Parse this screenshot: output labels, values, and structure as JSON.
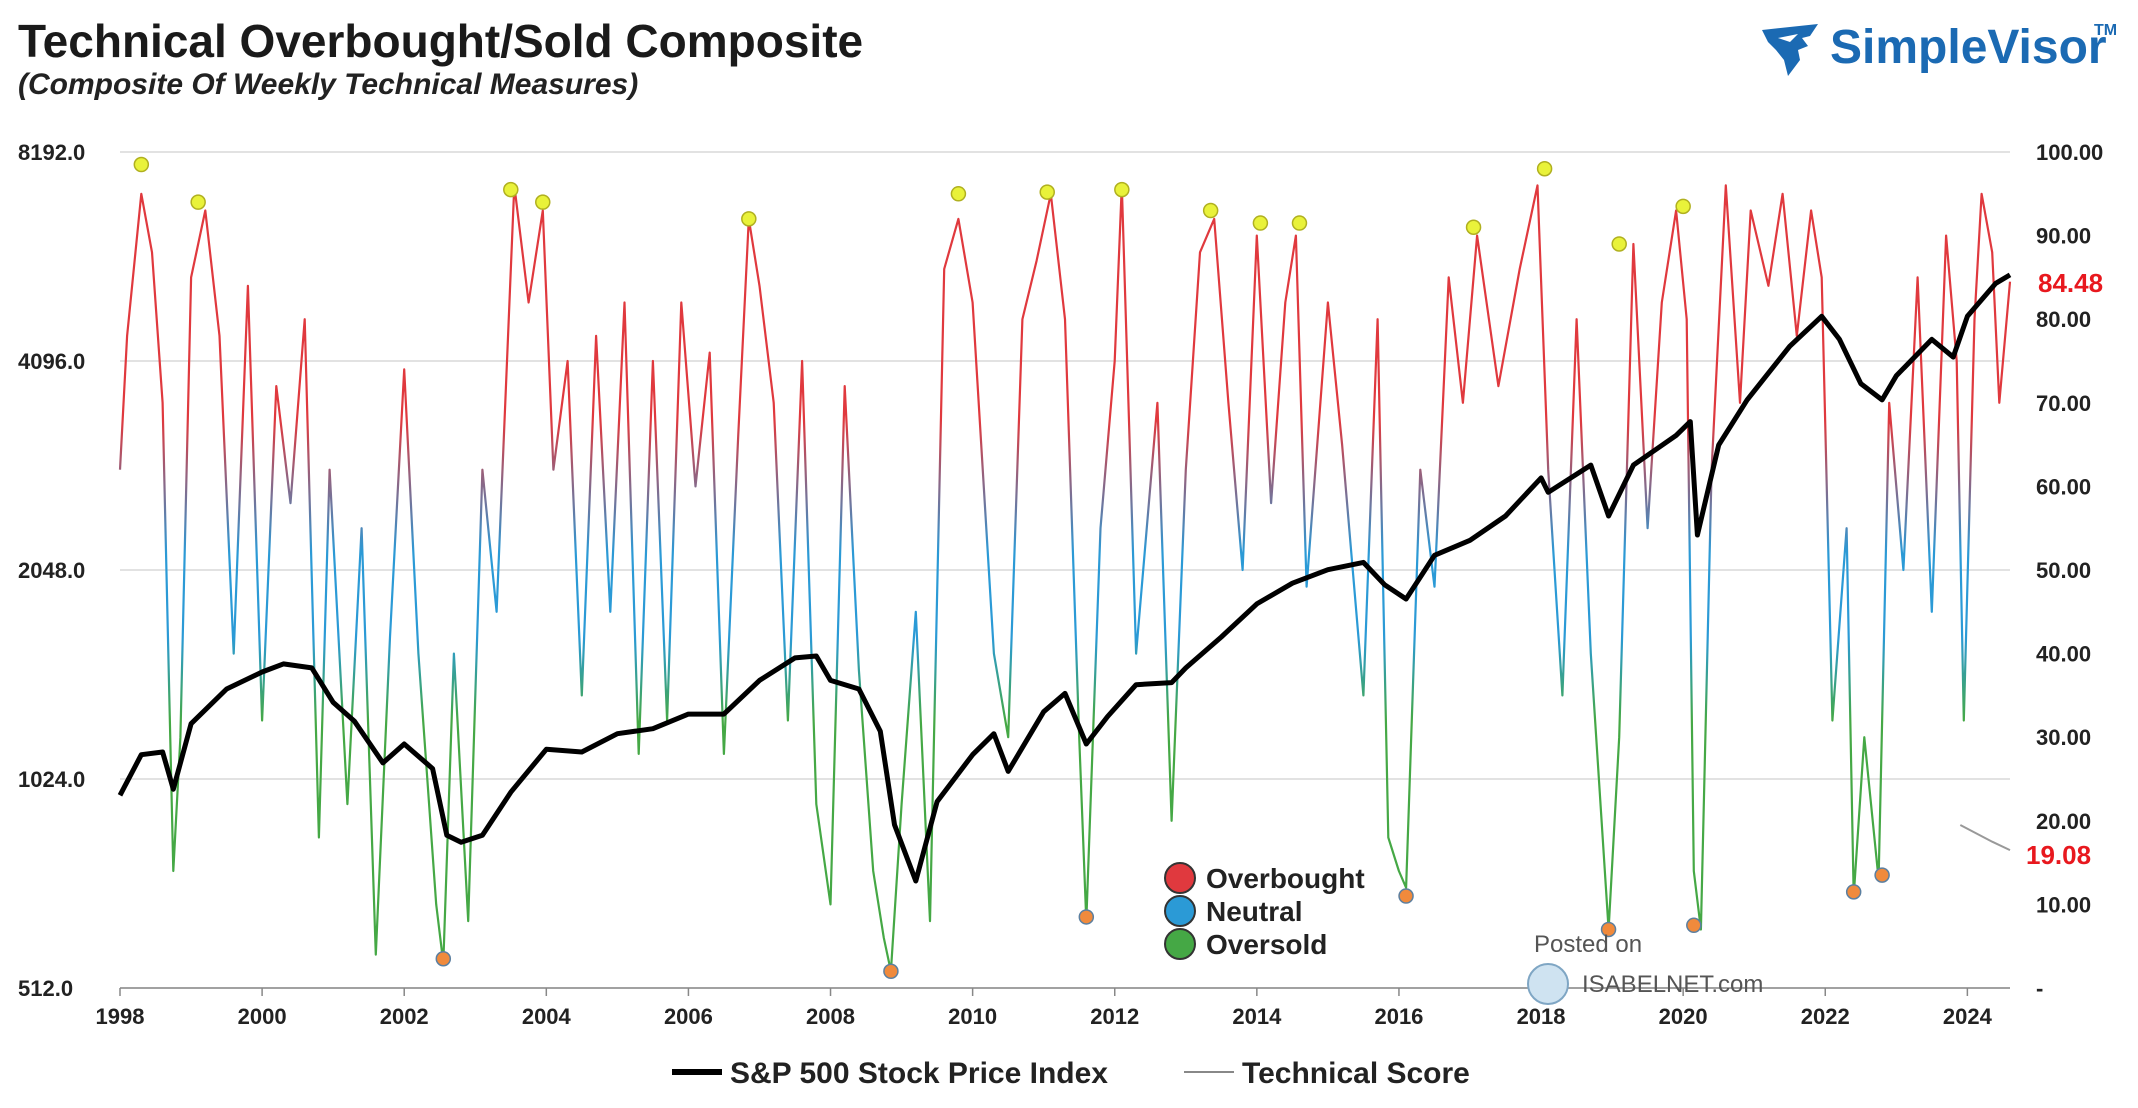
{
  "header": {
    "title": "Technical Overbought/Sold Composite",
    "subtitle": "(Composite Of Weekly Technical Measures)"
  },
  "logo": {
    "brand": "SimpleVisor",
    "tm": "TM",
    "icon": "eagle-icon",
    "color": "#1b6ab3"
  },
  "watermark": {
    "line1": "Posted on",
    "line2": "ISABELNET.com",
    "icon": "globe-icon"
  },
  "colors": {
    "overbought": "#e0393e",
    "neutral": "#2b9ad6",
    "oversold": "#45a845",
    "sp500": "#000000",
    "callout": "#e8181e",
    "peak_marker": "#e9f23a",
    "trough_marker": "#f08a3c"
  },
  "chart_data": {
    "type": "line",
    "x_range": [
      1998,
      2024.6
    ],
    "x_ticks": [
      "1998",
      "2000",
      "2002",
      "2004",
      "2006",
      "2008",
      "2010",
      "2012",
      "2014",
      "2016",
      "2018",
      "2020",
      "2022",
      "2024"
    ],
    "y_left": {
      "scale": "log2",
      "range": [
        512,
        8192
      ],
      "ticks": [
        "512.0",
        "1024.0",
        "2048.0",
        "4096.0",
        "8192.0"
      ]
    },
    "y_right": {
      "range": [
        0,
        100
      ],
      "ticks": [
        "-",
        "10.00",
        "20.00",
        "30.00",
        "40.00",
        "50.00",
        "60.00",
        "70.00",
        "80.00",
        "90.00",
        "100.00"
      ]
    },
    "grid": "horizontal",
    "legend": {
      "position": "bottom",
      "items": [
        "S&P 500 Stock Price Index",
        "Technical Score"
      ]
    },
    "zone_legend": {
      "position": "center-bottom",
      "items": [
        {
          "label": "Overbought",
          "color": "#e0393e"
        },
        {
          "label": "Neutral",
          "color": "#2b9ad6"
        },
        {
          "label": "Oversold",
          "color": "#45a845"
        }
      ]
    },
    "callouts": {
      "technical_score": "84.48",
      "last_value": "19.08"
    },
    "sp500": {
      "name": "S&P 500 Stock Price Index",
      "axis": "left",
      "points": [
        [
          1998.0,
          970
        ],
        [
          1998.3,
          1110
        ],
        [
          1998.6,
          1120
        ],
        [
          1998.75,
          990
        ],
        [
          1999.0,
          1230
        ],
        [
          1999.5,
          1380
        ],
        [
          2000.0,
          1460
        ],
        [
          2000.3,
          1500
        ],
        [
          2000.7,
          1480
        ],
        [
          2001.0,
          1320
        ],
        [
          2001.3,
          1240
        ],
        [
          2001.7,
          1080
        ],
        [
          2002.0,
          1150
        ],
        [
          2002.4,
          1060
        ],
        [
          2002.6,
          850
        ],
        [
          2002.8,
          830
        ],
        [
          2003.1,
          850
        ],
        [
          2003.5,
          980
        ],
        [
          2004.0,
          1130
        ],
        [
          2004.5,
          1120
        ],
        [
          2005.0,
          1190
        ],
        [
          2005.5,
          1210
        ],
        [
          2006.0,
          1270
        ],
        [
          2006.5,
          1270
        ],
        [
          2007.0,
          1420
        ],
        [
          2007.5,
          1530
        ],
        [
          2007.8,
          1540
        ],
        [
          2008.0,
          1420
        ],
        [
          2008.4,
          1380
        ],
        [
          2008.7,
          1200
        ],
        [
          2008.9,
          880
        ],
        [
          2009.2,
          730
        ],
        [
          2009.5,
          950
        ],
        [
          2010.0,
          1110
        ],
        [
          2010.3,
          1190
        ],
        [
          2010.5,
          1050
        ],
        [
          2011.0,
          1280
        ],
        [
          2011.3,
          1360
        ],
        [
          2011.6,
          1150
        ],
        [
          2011.9,
          1260
        ],
        [
          2012.3,
          1400
        ],
        [
          2012.8,
          1410
        ],
        [
          2013.0,
          1480
        ],
        [
          2013.5,
          1640
        ],
        [
          2014.0,
          1830
        ],
        [
          2014.5,
          1960
        ],
        [
          2015.0,
          2050
        ],
        [
          2015.5,
          2100
        ],
        [
          2015.8,
          1950
        ],
        [
          2016.1,
          1860
        ],
        [
          2016.5,
          2150
        ],
        [
          2017.0,
          2260
        ],
        [
          2017.5,
          2450
        ],
        [
          2018.0,
          2780
        ],
        [
          2018.1,
          2650
        ],
        [
          2018.7,
          2900
        ],
        [
          2018.95,
          2450
        ],
        [
          2019.3,
          2900
        ],
        [
          2019.9,
          3200
        ],
        [
          2020.1,
          3350
        ],
        [
          2020.2,
          2300
        ],
        [
          2020.5,
          3100
        ],
        [
          2020.9,
          3600
        ],
        [
          2021.5,
          4300
        ],
        [
          2021.95,
          4750
        ],
        [
          2022.2,
          4400
        ],
        [
          2022.5,
          3800
        ],
        [
          2022.8,
          3600
        ],
        [
          2023.0,
          3900
        ],
        [
          2023.5,
          4400
        ],
        [
          2023.8,
          4150
        ],
        [
          2024.0,
          4750
        ],
        [
          2024.4,
          5300
        ],
        [
          2024.6,
          5450
        ]
      ]
    },
    "technical_score": {
      "name": "Technical Score",
      "axis": "right",
      "points": [
        [
          1998.0,
          62
        ],
        [
          1998.1,
          78
        ],
        [
          1998.3,
          95
        ],
        [
          1998.45,
          88
        ],
        [
          1998.6,
          70
        ],
        [
          1998.75,
          14
        ],
        [
          1998.85,
          30
        ],
        [
          1999.0,
          85
        ],
        [
          1999.2,
          93
        ],
        [
          1999.4,
          78
        ],
        [
          1999.6,
          40
        ],
        [
          1999.8,
          84
        ],
        [
          2000.0,
          32
        ],
        [
          2000.2,
          72
        ],
        [
          2000.4,
          58
        ],
        [
          2000.6,
          80
        ],
        [
          2000.8,
          18
        ],
        [
          2000.95,
          62
        ],
        [
          2001.2,
          22
        ],
        [
          2001.4,
          55
        ],
        [
          2001.6,
          4
        ],
        [
          2001.8,
          42
        ],
        [
          2002.0,
          74
        ],
        [
          2002.2,
          40
        ],
        [
          2002.45,
          10
        ],
        [
          2002.55,
          3
        ],
        [
          2002.7,
          40
        ],
        [
          2002.9,
          8
        ],
        [
          2003.1,
          62
        ],
        [
          2003.3,
          45
        ],
        [
          2003.55,
          96
        ],
        [
          2003.75,
          82
        ],
        [
          2003.95,
          93
        ],
        [
          2004.1,
          62
        ],
        [
          2004.3,
          75
        ],
        [
          2004.5,
          35
        ],
        [
          2004.7,
          78
        ],
        [
          2004.9,
          45
        ],
        [
          2005.1,
          82
        ],
        [
          2005.3,
          28
        ],
        [
          2005.5,
          75
        ],
        [
          2005.7,
          32
        ],
        [
          2005.9,
          82
        ],
        [
          2006.1,
          60
        ],
        [
          2006.3,
          76
        ],
        [
          2006.5,
          28
        ],
        [
          2006.7,
          66
        ],
        [
          2006.85,
          92
        ],
        [
          2007.0,
          84
        ],
        [
          2007.2,
          70
        ],
        [
          2007.4,
          32
        ],
        [
          2007.6,
          75
        ],
        [
          2007.8,
          22
        ],
        [
          2008.0,
          10
        ],
        [
          2008.2,
          72
        ],
        [
          2008.4,
          38
        ],
        [
          2008.6,
          14
        ],
        [
          2008.75,
          6
        ],
        [
          2008.85,
          2
        ],
        [
          2009.0,
          22
        ],
        [
          2009.2,
          45
        ],
        [
          2009.4,
          8
        ],
        [
          2009.6,
          86
        ],
        [
          2009.8,
          92
        ],
        [
          2010.0,
          82
        ],
        [
          2010.3,
          40
        ],
        [
          2010.5,
          30
        ],
        [
          2010.7,
          80
        ],
        [
          2010.9,
          87
        ],
        [
          2011.1,
          95
        ],
        [
          2011.3,
          80
        ],
        [
          2011.5,
          30
        ],
        [
          2011.6,
          8
        ],
        [
          2011.8,
          55
        ],
        [
          2012.0,
          75
        ],
        [
          2012.1,
          96
        ],
        [
          2012.3,
          40
        ],
        [
          2012.6,
          70
        ],
        [
          2012.8,
          20
        ],
        [
          2013.0,
          62
        ],
        [
          2013.2,
          88
        ],
        [
          2013.4,
          92
        ],
        [
          2013.6,
          70
        ],
        [
          2013.8,
          50
        ],
        [
          2014.0,
          90
        ],
        [
          2014.2,
          58
        ],
        [
          2014.4,
          82
        ],
        [
          2014.55,
          90
        ],
        [
          2014.7,
          48
        ],
        [
          2015.0,
          82
        ],
        [
          2015.2,
          65
        ],
        [
          2015.5,
          35
        ],
        [
          2015.7,
          80
        ],
        [
          2015.85,
          18
        ],
        [
          2016.0,
          14
        ],
        [
          2016.1,
          12
        ],
        [
          2016.3,
          62
        ],
        [
          2016.5,
          48
        ],
        [
          2016.7,
          85
        ],
        [
          2016.9,
          70
        ],
        [
          2017.1,
          90
        ],
        [
          2017.4,
          72
        ],
        [
          2017.7,
          86
        ],
        [
          2017.95,
          96
        ],
        [
          2018.1,
          62
        ],
        [
          2018.3,
          35
        ],
        [
          2018.5,
          80
        ],
        [
          2018.7,
          40
        ],
        [
          2018.95,
          7
        ],
        [
          2019.1,
          30
        ],
        [
          2019.3,
          89
        ],
        [
          2019.5,
          55
        ],
        [
          2019.7,
          82
        ],
        [
          2019.9,
          93
        ],
        [
          2020.05,
          80
        ],
        [
          2020.15,
          14
        ],
        [
          2020.25,
          7
        ],
        [
          2020.4,
          62
        ],
        [
          2020.6,
          96
        ],
        [
          2020.8,
          70
        ],
        [
          2020.95,
          93
        ],
        [
          2021.2,
          84
        ],
        [
          2021.4,
          95
        ],
        [
          2021.6,
          78
        ],
        [
          2021.8,
          93
        ],
        [
          2021.95,
          85
        ],
        [
          2022.1,
          32
        ],
        [
          2022.3,
          55
        ],
        [
          2022.4,
          11
        ],
        [
          2022.55,
          30
        ],
        [
          2022.75,
          13
        ],
        [
          2022.9,
          70
        ],
        [
          2023.1,
          50
        ],
        [
          2023.3,
          85
        ],
        [
          2023.5,
          45
        ],
        [
          2023.7,
          90
        ],
        [
          2023.85,
          75
        ],
        [
          2023.95,
          32
        ],
        [
          2024.1,
          80
        ],
        [
          2024.2,
          95
        ],
        [
          2024.35,
          88
        ],
        [
          2024.45,
          70
        ],
        [
          2024.6,
          84.48
        ]
      ],
      "tail": [
        [
          2023.9,
          19.5
        ],
        [
          2024.35,
          17.5
        ],
        [
          2024.6,
          16.5
        ]
      ]
    },
    "peak_markers": [
      [
        1998.3,
        98.5
      ],
      [
        1999.1,
        94
      ],
      [
        2003.5,
        95.5
      ],
      [
        2003.95,
        94
      ],
      [
        2006.85,
        92
      ],
      [
        2009.8,
        95
      ],
      [
        2011.05,
        95.2
      ],
      [
        2012.1,
        95.5
      ],
      [
        2013.35,
        93
      ],
      [
        2014.05,
        91.5
      ],
      [
        2014.6,
        91.5
      ],
      [
        2017.05,
        91
      ],
      [
        2018.05,
        98
      ],
      [
        2019.1,
        89
      ],
      [
        2020.0,
        93.5
      ]
    ],
    "trough_markers": [
      [
        2002.55,
        3.5
      ],
      [
        2008.85,
        2
      ],
      [
        2011.6,
        8.5
      ],
      [
        2016.1,
        11
      ],
      [
        2018.95,
        7
      ],
      [
        2020.15,
        7.5
      ],
      [
        2022.4,
        11.5
      ],
      [
        2022.8,
        13.5
      ]
    ]
  }
}
